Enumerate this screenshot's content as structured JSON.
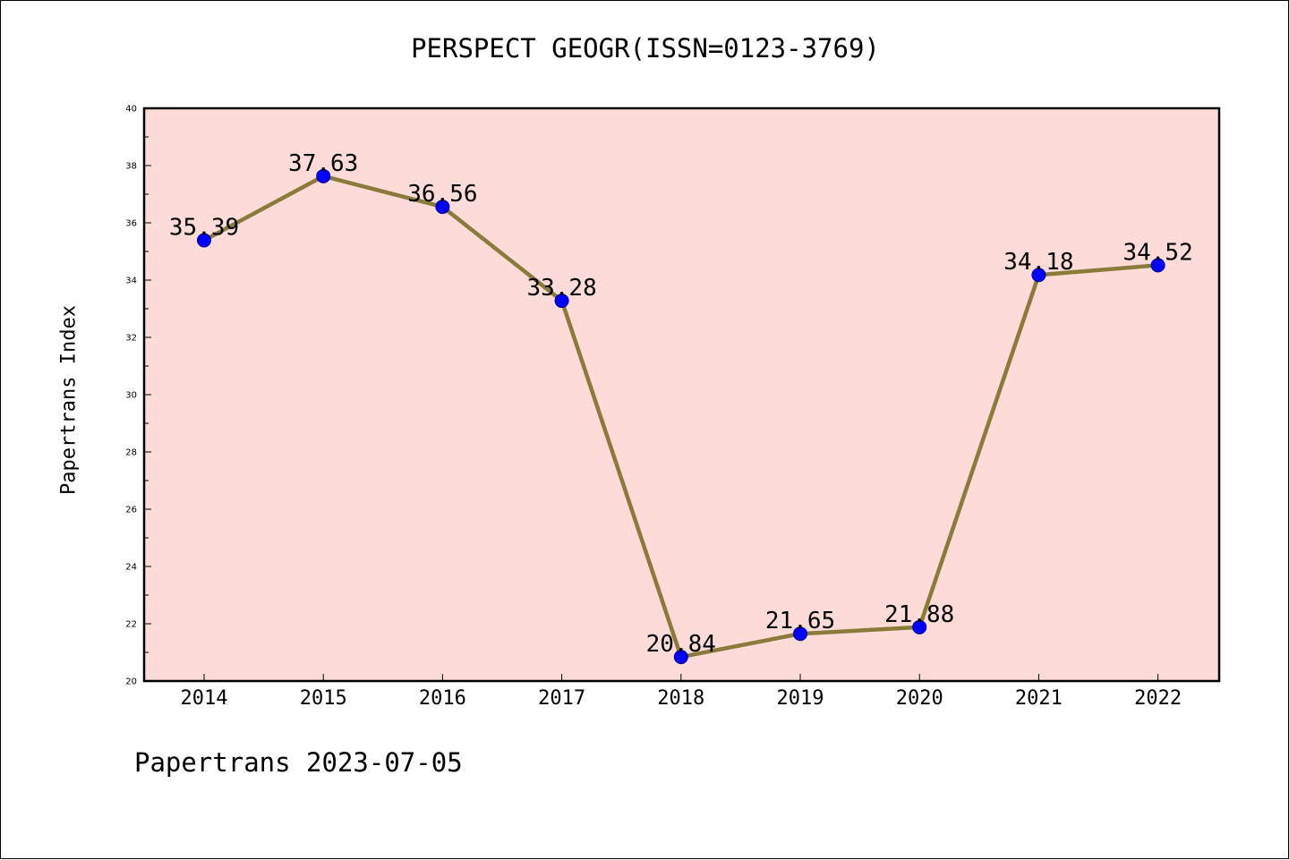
{
  "chart_data": {
    "type": "line",
    "title": "PERSPECT GEOGR(ISSN=0123-3769)",
    "xlabel": "",
    "ylabel": "Papertrans Index",
    "categories": [
      "2014",
      "2015",
      "2016",
      "2017",
      "2018",
      "2019",
      "2020",
      "2021",
      "2022"
    ],
    "series": [
      {
        "name": "Papertrans Index",
        "values": [
          35.39,
          37.63,
          36.56,
          33.28,
          20.84,
          21.65,
          21.88,
          34.18,
          34.52
        ],
        "labels": [
          "35.39",
          "37.63",
          "36.56",
          "33.28",
          "20.84",
          "21.65",
          "21.88",
          "34.18",
          "34.52"
        ]
      }
    ],
    "ylim": [
      20,
      40
    ],
    "yticks": [
      "20",
      "22",
      "24",
      "26",
      "28",
      "30",
      "32",
      "34",
      "36",
      "38",
      "40"
    ],
    "grid": false,
    "colors": {
      "plot_background": "#fddbd8",
      "line": "#8b7b3a",
      "marker": "#0000ff"
    }
  },
  "footer": {
    "text": "Papertrans 2023-07-05"
  }
}
